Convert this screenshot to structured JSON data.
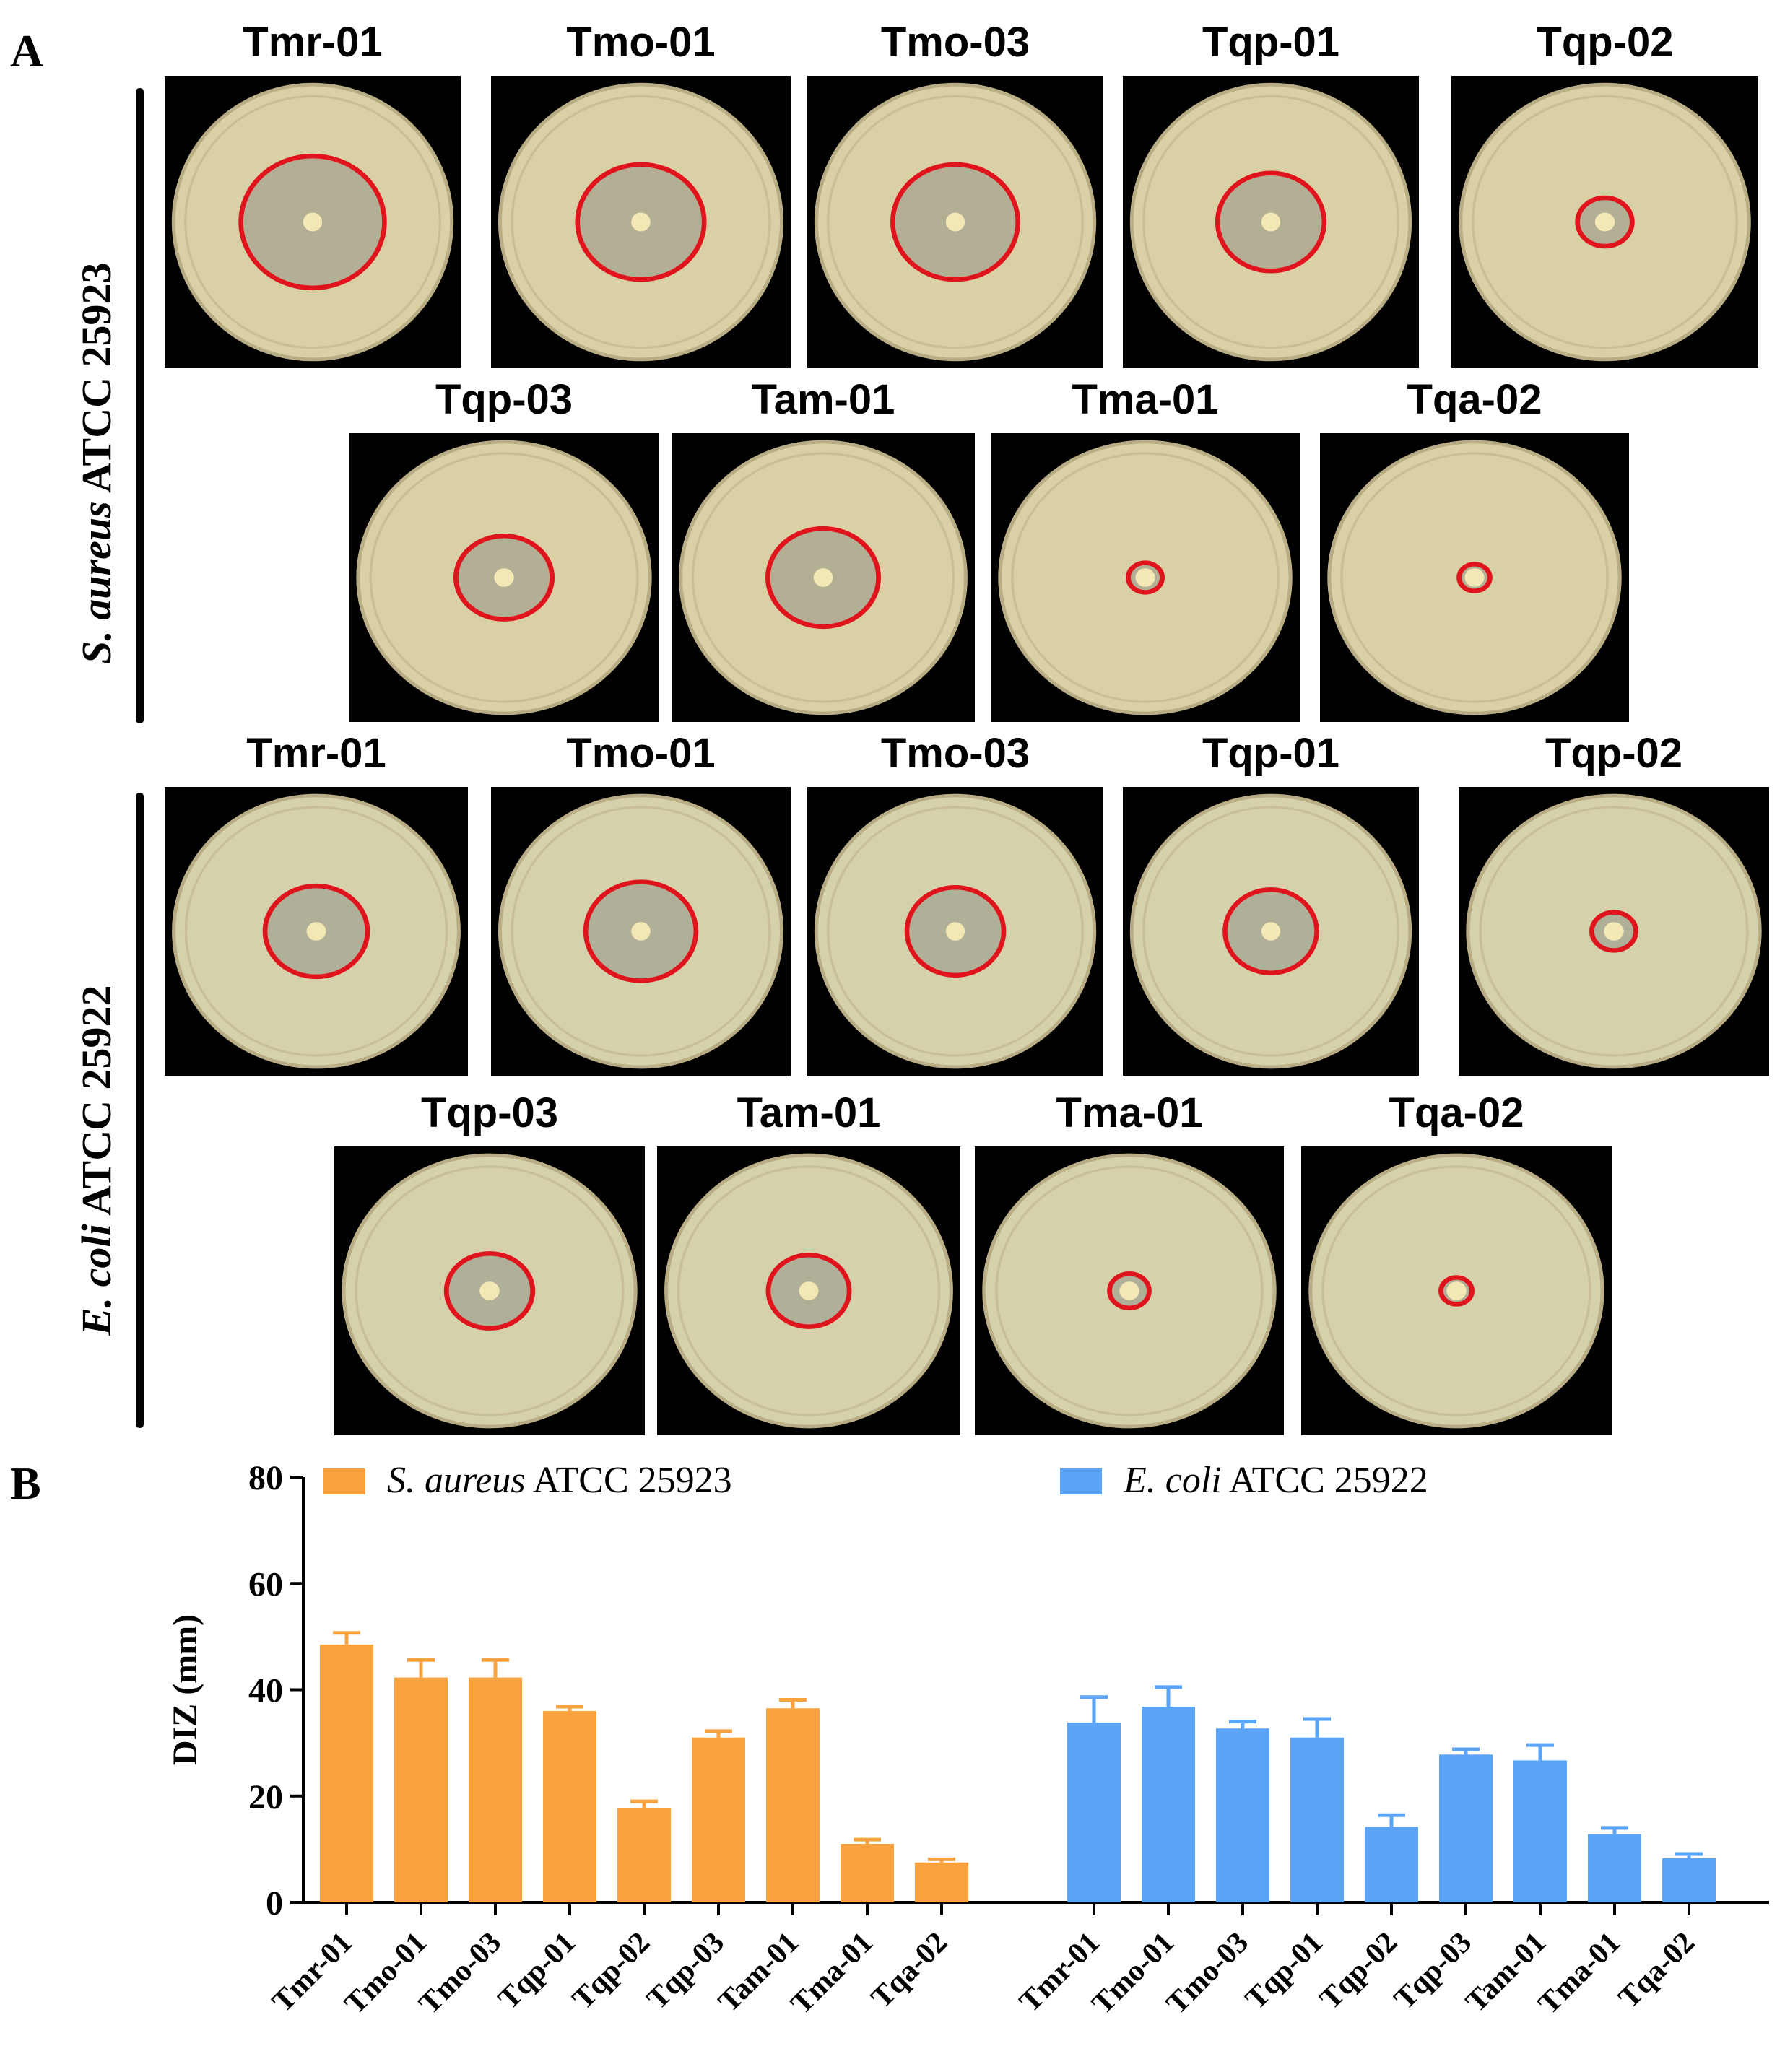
{
  "panel_a": {
    "letter": "A",
    "rows": [
      {
        "organism": {
          "italic": "S. aureus",
          "rest": " ATCC 25923"
        },
        "agar_color": "#d9d0a6",
        "top": [
          "Tmr-01",
          "Tmo-01",
          "Tmo-03",
          "Tqp-01",
          "Tqp-02"
        ],
        "bottom": [
          "Tqp-03",
          "Tam-01",
          "Tma-01",
          "Tqa-02"
        ],
        "zone_sizes": [
          48.5,
          42.3,
          42.3,
          36,
          17.8,
          31,
          36.5,
          11,
          7.5
        ]
      },
      {
        "organism": {
          "italic": "E. coli",
          "rest": " ATCC 25922"
        },
        "agar_color": "#d4d1ab",
        "top": [
          "Tmr-01",
          "Tmo-01",
          "Tmo-03",
          "Tqp-01",
          "Tqp-02"
        ],
        "bottom": [
          "Tqp-03",
          "Tam-01",
          "Tma-01",
          "Tqa-02"
        ],
        "zone_sizes": [
          33.8,
          36.8,
          32.7,
          31,
          14.2,
          27.8,
          26.7,
          12.8,
          8.3
        ]
      }
    ],
    "ring_color": "#e0141c"
  },
  "panel_b": {
    "letter": "B"
  },
  "chart_data": {
    "type": "bar",
    "ylabel": "DIZ (mm)",
    "ylim": [
      0,
      80
    ],
    "yticks": [
      0,
      20,
      40,
      60,
      80
    ],
    "categories": [
      "Tmr-01",
      "Tmo-01",
      "Tmo-03",
      "Tqp-01",
      "Tqp-02",
      "Tqp-03",
      "Tam-01",
      "Tma-01",
      "Tqa-02"
    ],
    "legend_placement": "top",
    "series": [
      {
        "name": {
          "italic": "S. aureus",
          "rest": " ATCC 25923"
        },
        "color": "#f7a23f",
        "values": [
          48.5,
          42.3,
          42.3,
          36.0,
          17.8,
          31.0,
          36.5,
          11.0,
          7.5
        ],
        "errors": [
          2.2,
          3.3,
          3.3,
          0.8,
          1.2,
          1.2,
          1.6,
          0.8,
          0.6
        ]
      },
      {
        "name": {
          "italic": "E. coli",
          "rest": " ATCC 25922"
        },
        "color": "#5aa3f5",
        "values": [
          33.8,
          36.8,
          32.7,
          31.0,
          14.2,
          27.8,
          26.7,
          12.8,
          8.3
        ],
        "errors": [
          4.8,
          3.7,
          1.3,
          3.5,
          2.2,
          1.0,
          2.9,
          1.2,
          0.8
        ]
      }
    ]
  }
}
